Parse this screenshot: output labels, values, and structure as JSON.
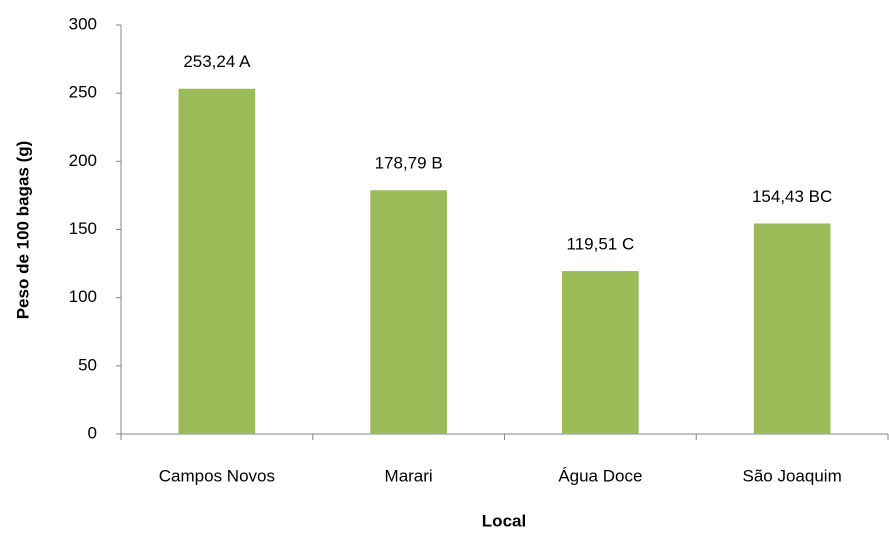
{
  "chart_data": {
    "type": "bar",
    "categories": [
      "Campos Novos",
      "Marari",
      "Água Doce",
      "São Joaquim"
    ],
    "values": [
      253.24,
      178.79,
      119.51,
      154.43
    ],
    "value_labels": [
      "253,24 A",
      "178,79 B",
      "119,51 C",
      "154,43 BC"
    ],
    "color": "#9bbb59",
    "x_label": "Local",
    "y_label": "Peso de 100 bagas (g)",
    "ylim": [
      0,
      300
    ],
    "yticks": [
      0,
      50,
      100,
      150,
      200,
      250,
      300
    ],
    "grid": false
  }
}
